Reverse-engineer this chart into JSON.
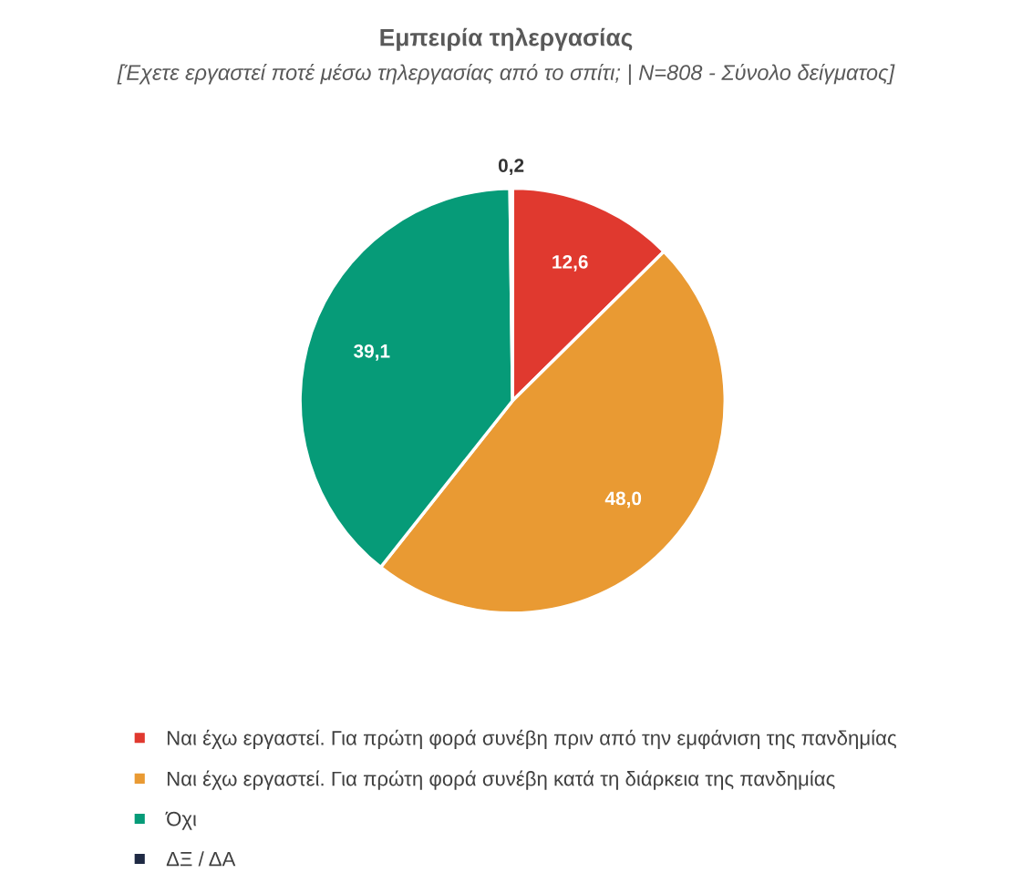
{
  "chart_data": {
    "type": "pie",
    "title": "Εμπειρία τηλεργασίας",
    "subtitle": "[Έχετε εργαστεί ποτέ μέσω τηλεργασίας από το σπίτι; | N=808 - Σύνολο δείγματος]",
    "categories": [
      "Ναι έχω εργαστεί. Για πρώτη φορά συνέβη πριν από την εμφάνιση της πανδημίας",
      "Ναι έχω εργαστεί. Για πρώτη φορά συνέβη κατά τη διάρκεια της πανδημίας",
      "Όχι",
      "ΔΞ / ΔΑ"
    ],
    "values": [
      12.6,
      48.0,
      39.1,
      0.2
    ],
    "colors": [
      "#e0392f",
      "#e99a33",
      "#069b78",
      "#1f2a44"
    ],
    "value_labels": [
      "12,6",
      "48,0",
      "39,1",
      "0,2"
    ],
    "legend": "bottom"
  }
}
